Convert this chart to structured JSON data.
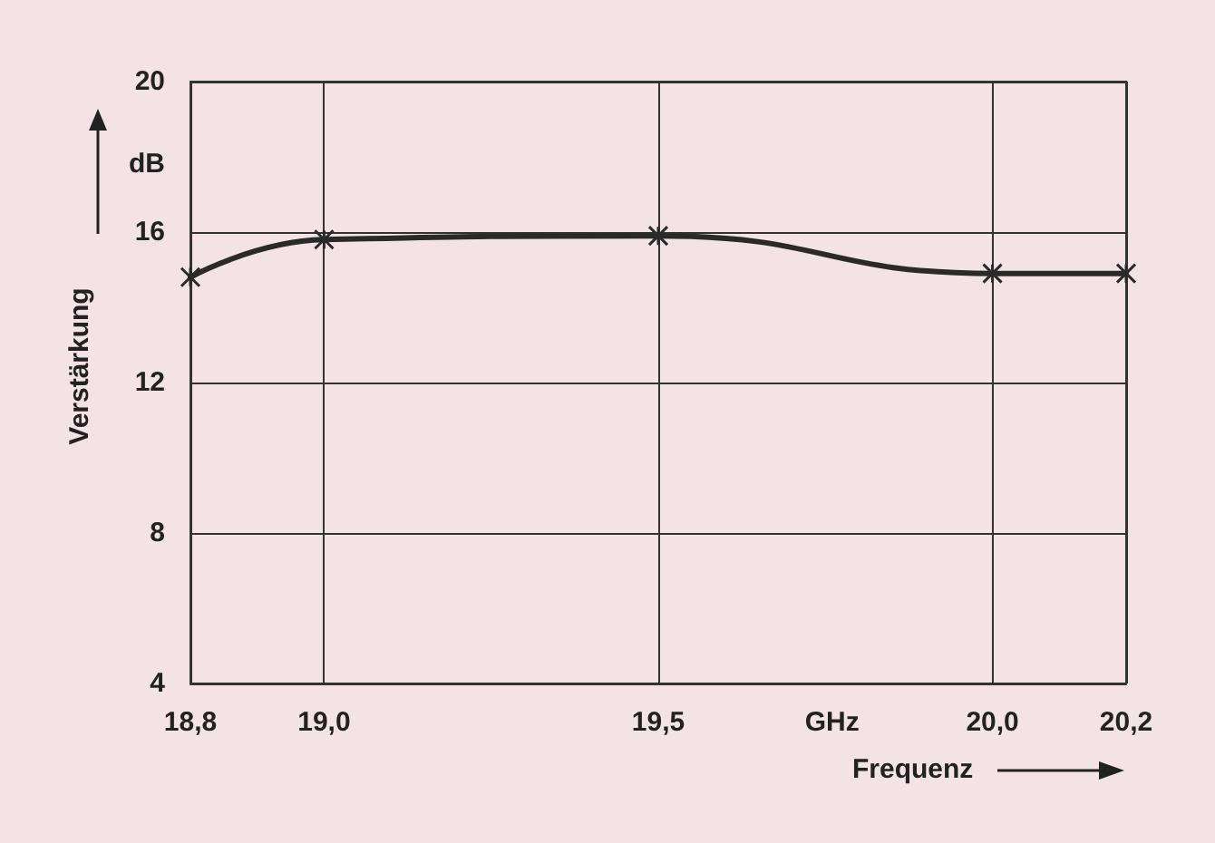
{
  "chart_data": {
    "type": "line",
    "xlabel": "Frequenz",
    "ylabel": "Verstärkung",
    "x": [
      18.8,
      19.0,
      19.5,
      20.0,
      20.2
    ],
    "series": [
      {
        "color": "#2a2a2a",
        "values": [
          14.8,
          15.8,
          15.9,
          14.9,
          14.9
        ]
      }
    ],
    "xlim": [
      18.8,
      20.2
    ],
    "xticks": [
      {
        "value": 18.8,
        "label": "18,8"
      },
      {
        "value": 19.0,
        "label": "19,0"
      },
      {
        "value": 19.5,
        "label": "19,5"
      },
      {
        "value": 19.76,
        "label": "GHz"
      },
      {
        "value": 20.0,
        "label": "20,0"
      },
      {
        "value": 20.2,
        "label": "20,2"
      }
    ],
    "ylim": [
      4,
      20
    ],
    "yticks": [
      4,
      8,
      12,
      16,
      {
        "value": 17.8,
        "label": "dB"
      },
      20
    ],
    "grid": true,
    "marker": "cross",
    "line_style": "solid"
  }
}
